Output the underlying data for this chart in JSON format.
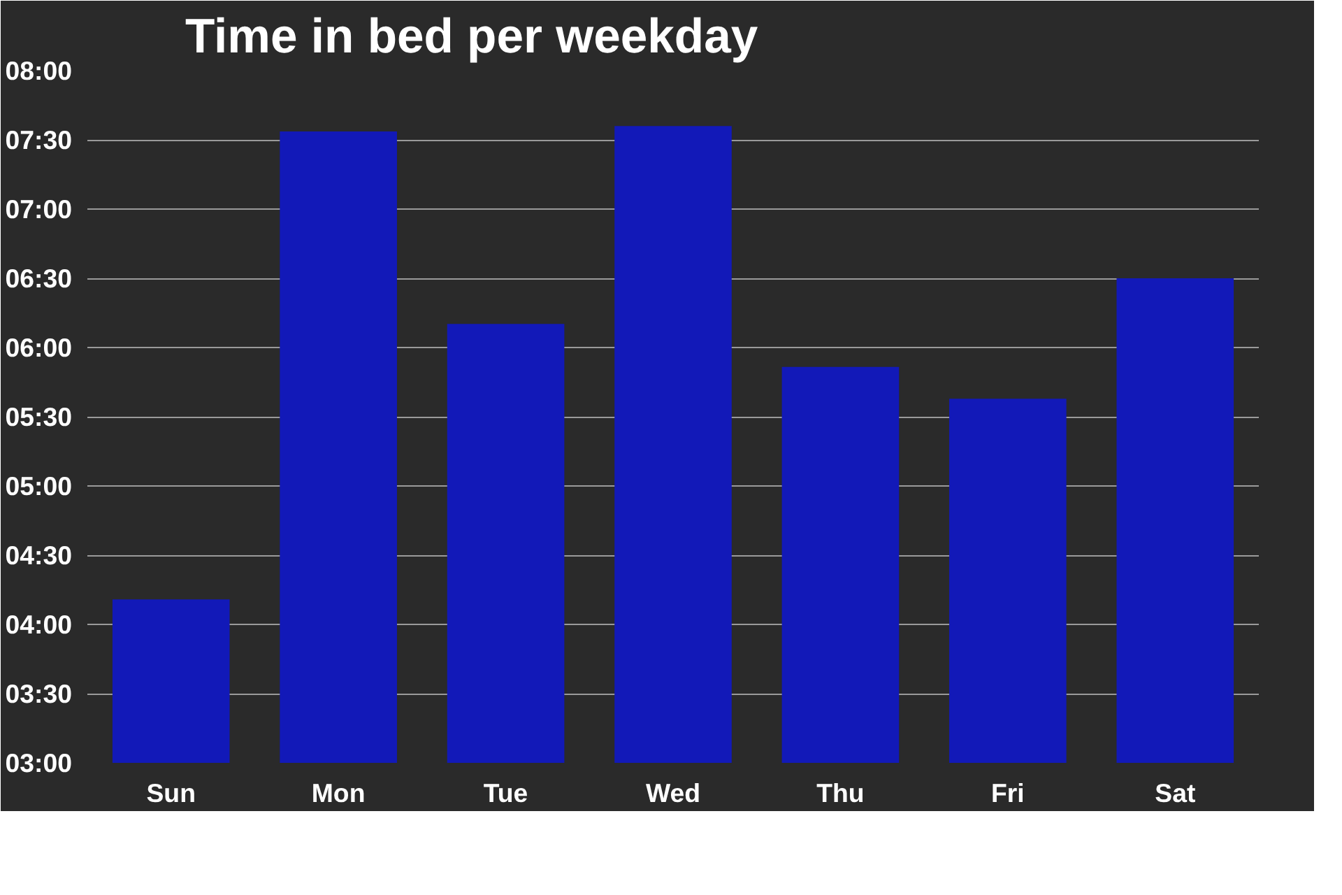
{
  "chart_data": {
    "type": "bar",
    "title": "Time in bed per weekday",
    "categories": [
      "Sun",
      "Mon",
      "Tue",
      "Wed",
      "Thu",
      "Fri",
      "Sat"
    ],
    "values": [
      4.18,
      7.56,
      6.17,
      7.6,
      5.86,
      5.63,
      6.5
    ],
    "color": "#1219b8",
    "ylim": [
      3,
      8
    ],
    "yticks": [
      {
        "value": 3,
        "label": "03:00"
      },
      {
        "value": 3.5,
        "label": "03:30"
      },
      {
        "value": 4,
        "label": "04:00"
      },
      {
        "value": 4.5,
        "label": "04:30"
      },
      {
        "value": 5,
        "label": "05:00"
      },
      {
        "value": 5.5,
        "label": "05:30"
      },
      {
        "value": 6,
        "label": "06:00"
      },
      {
        "value": 6.5,
        "label": "06:30"
      },
      {
        "value": 7,
        "label": "07:00"
      },
      {
        "value": 7.5,
        "label": "07:30"
      },
      {
        "value": 8,
        "label": "08:00"
      }
    ],
    "grid": "y"
  }
}
